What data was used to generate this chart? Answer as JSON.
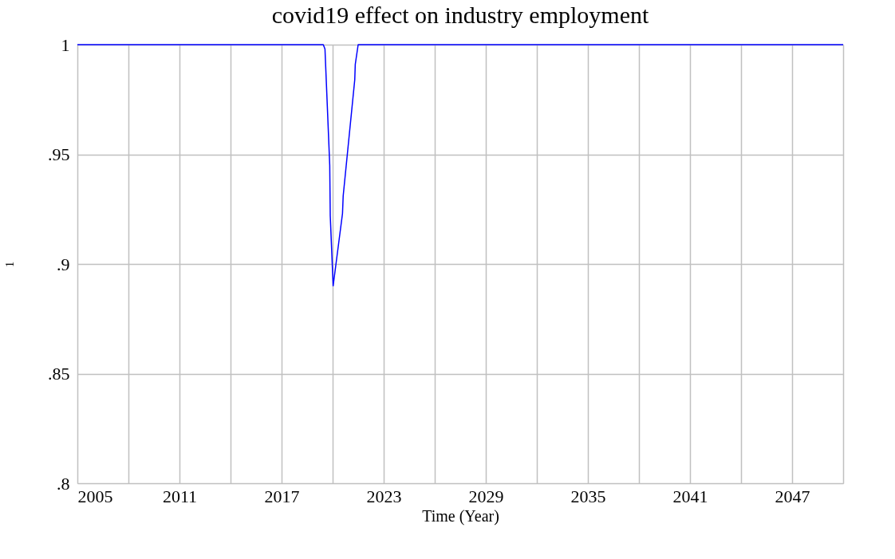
{
  "chart_data": {
    "type": "line",
    "title": "covid19 effect on industry employment",
    "xlabel": "Time (Year)",
    "ylabel": "1",
    "x": [
      2005,
      2019.45,
      2019.55,
      2019.83,
      2019.86,
      2020.03,
      2020.58,
      2020.62,
      2021.3,
      2021.33,
      2021.5,
      2050
    ],
    "series": [
      {
        "color": "#0000ff",
        "values": [
          1,
          1,
          0.998,
          0.945,
          0.922,
          0.89,
          0.923,
          0.931,
          0.984,
          0.991,
          1,
          1
        ]
      }
    ],
    "xlim": [
      2005,
      2050
    ],
    "xticks": [
      2005,
      {
        "value": 2008,
        "label": null
      },
      2011,
      {
        "value": 2014,
        "label": null
      },
      2017,
      {
        "value": 2020,
        "label": null
      },
      2023,
      {
        "value": 2026,
        "label": null
      },
      2029,
      {
        "value": 2032,
        "label": null
      },
      2035,
      {
        "value": 2038,
        "label": null
      },
      2041,
      {
        "value": 2044,
        "label": null
      },
      2047,
      {
        "value": 2050,
        "label": null
      }
    ],
    "ylim": [
      0.8,
      1
    ],
    "yticks": [
      {
        "value": 0.8,
        "label": ".8"
      },
      {
        "value": 0.85,
        "label": ".85"
      },
      {
        "value": 0.9,
        "label": ".9"
      },
      {
        "value": 0.95,
        "label": ".95"
      },
      1
    ],
    "grid": true,
    "legend": false,
    "marker": "none",
    "line_style": "solid"
  }
}
